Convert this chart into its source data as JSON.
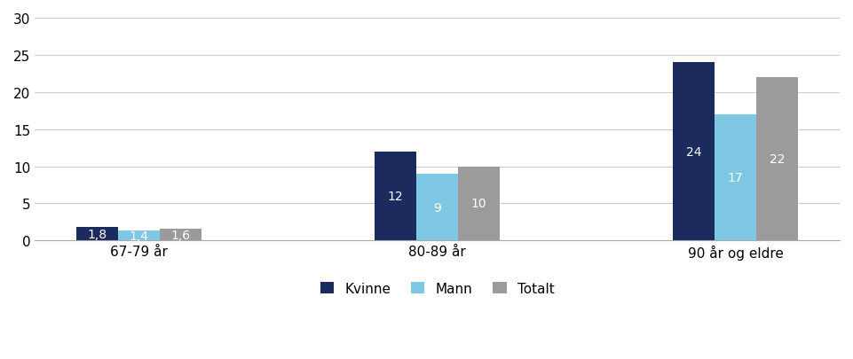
{
  "categories": [
    "67-79 år",
    "80-89 år",
    "90 år og eldre"
  ],
  "series": {
    "Kvinne": [
      1.8,
      12,
      24
    ],
    "Mann": [
      1.4,
      9,
      17
    ],
    "Totalt": [
      1.6,
      10,
      22
    ]
  },
  "colors": {
    "Kvinne": "#1B2B5E",
    "Mann": "#7EC8E3",
    "Totalt": "#9B9B9B"
  },
  "ylim": [
    0,
    30
  ],
  "yticks": [
    0,
    5,
    10,
    15,
    20,
    25,
    30
  ],
  "bar_width": 0.28,
  "group_positions": [
    0.5,
    2.5,
    4.5
  ],
  "label_fontsize": 10,
  "tick_fontsize": 11,
  "legend_fontsize": 11,
  "background_color": "#ffffff",
  "grid_color": "#cccccc"
}
